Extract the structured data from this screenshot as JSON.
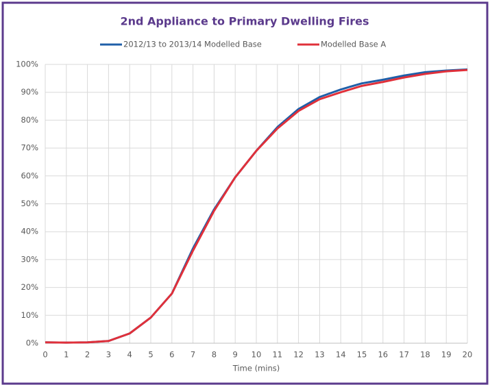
{
  "chart_data": {
    "type": "line",
    "title": "2nd Appliance to Primary Dwelling Fires",
    "x_label": "Time (mins)",
    "x": [
      0,
      1,
      2,
      3,
      4,
      5,
      6,
      7,
      8,
      9,
      10,
      11,
      12,
      13,
      14,
      15,
      16,
      17,
      18,
      19,
      20
    ],
    "xlim": [
      0,
      20
    ],
    "xticks": [
      0,
      1,
      2,
      3,
      4,
      5,
      6,
      7,
      8,
      9,
      10,
      11,
      12,
      13,
      14,
      15,
      16,
      17,
      18,
      19,
      20
    ],
    "ylim": [
      0,
      100
    ],
    "yticks": [
      {
        "value": 0,
        "label": "0%"
      },
      {
        "value": 10,
        "label": "10%"
      },
      {
        "value": 20,
        "label": "20%"
      },
      {
        "value": 30,
        "label": "30%"
      },
      {
        "value": 40,
        "label": "40%"
      },
      {
        "value": 50,
        "label": "50%"
      },
      {
        "value": 60,
        "label": "60%"
      },
      {
        "value": 70,
        "label": "70%"
      },
      {
        "value": 80,
        "label": "80%"
      },
      {
        "value": 90,
        "label": "90%"
      },
      {
        "value": 100,
        "label": "100%"
      }
    ],
    "grid": true,
    "legend": "top",
    "series": [
      {
        "name": "2012/13 to 2013/14 Modelled Base",
        "color": "#1f5fa8",
        "values": [
          0.3,
          0.2,
          0.3,
          0.8,
          3.5,
          9.2,
          17.8,
          34,
          48,
          59.5,
          69,
          77.5,
          84,
          88.3,
          91,
          93.2,
          94.5,
          96,
          97.2,
          97.8,
          98.2
        ]
      },
      {
        "name": "Modelled Base A",
        "color": "#e0303a",
        "values": [
          0.3,
          0.2,
          0.3,
          0.8,
          3.5,
          9.2,
          17.8,
          33.2,
          47.5,
          59.5,
          69,
          77,
          83.3,
          87.5,
          90,
          92.3,
          93.7,
          95.3,
          96.6,
          97.5,
          98
        ]
      }
    ]
  }
}
